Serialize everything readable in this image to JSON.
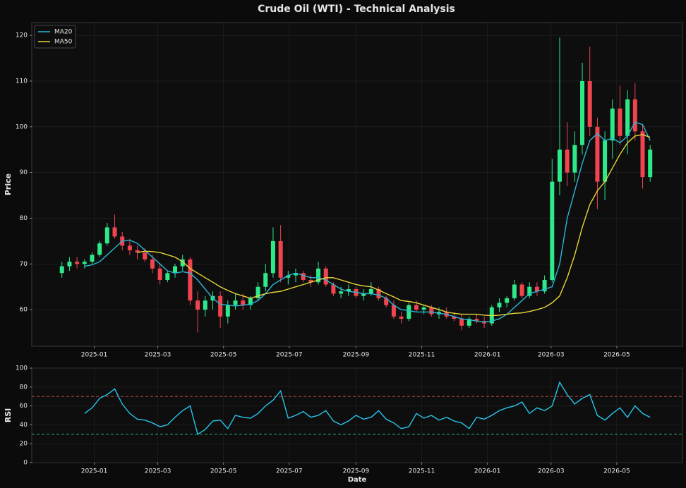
{
  "chart_data": [
    {
      "type": "candlestick",
      "title": "Crude Oil (WTI) - Technical Analysis",
      "ylabel": "Price",
      "x": [
        "2024-12-02",
        "2024-12-09",
        "2024-12-16",
        "2024-12-23",
        "2024-12-30",
        "2025-01-06",
        "2025-01-13",
        "2025-01-20",
        "2025-01-27",
        "2025-02-03",
        "2025-02-10",
        "2025-02-17",
        "2025-02-24",
        "2025-03-03",
        "2025-03-10",
        "2025-03-17",
        "2025-03-24",
        "2025-03-31",
        "2025-04-07",
        "2025-04-14",
        "2025-04-21",
        "2025-04-28",
        "2025-05-05",
        "2025-05-12",
        "2025-05-19",
        "2025-05-26",
        "2025-06-02",
        "2025-06-09",
        "2025-06-16",
        "2025-06-23",
        "2025-06-30",
        "2025-07-07",
        "2025-07-14",
        "2025-07-21",
        "2025-07-28",
        "2025-08-04",
        "2025-08-11",
        "2025-08-18",
        "2025-08-25",
        "2025-09-01",
        "2025-09-08",
        "2025-09-15",
        "2025-09-22",
        "2025-09-29",
        "2025-10-06",
        "2025-10-13",
        "2025-10-20",
        "2025-10-27",
        "2025-11-03",
        "2025-11-10",
        "2025-11-17",
        "2025-11-24",
        "2025-12-01",
        "2025-12-08",
        "2025-12-15",
        "2025-12-22",
        "2025-12-29",
        "2026-01-05",
        "2026-01-12",
        "2026-01-19",
        "2026-01-26",
        "2026-02-02",
        "2026-02-09",
        "2026-02-16",
        "2026-02-23",
        "2026-03-02",
        "2026-03-09",
        "2026-03-16",
        "2026-03-23",
        "2026-03-30",
        "2026-04-06",
        "2026-04-13",
        "2026-04-20",
        "2026-04-27",
        "2026-05-04",
        "2026-05-11",
        "2026-05-18",
        "2026-05-25",
        "2026-06-01"
      ],
      "open": [
        68,
        69.5,
        70.5,
        70,
        70.5,
        72,
        74.5,
        78,
        76,
        74,
        73,
        72.5,
        71,
        69,
        66.5,
        68,
        69.5,
        71,
        62,
        60,
        62,
        63,
        58.5,
        61,
        62,
        61,
        62.5,
        65,
        68,
        75,
        67,
        67.5,
        68,
        66.5,
        66,
        69,
        65.5,
        63.5,
        64,
        64.5,
        63,
        63.5,
        64.5,
        62.5,
        61,
        58.5,
        58,
        61,
        60,
        60.5,
        59,
        59.5,
        58.5,
        58,
        56.5,
        58,
        57.5,
        57,
        60.5,
        61.5,
        62.5,
        65.5,
        63,
        65,
        64,
        66.5,
        88,
        95,
        90,
        96,
        110,
        100,
        88,
        97,
        104,
        98,
        106,
        99,
        89
      ],
      "high": [
        70.5,
        71.5,
        71.5,
        71,
        72.5,
        75,
        79,
        80.8,
        77,
        75.5,
        74,
        73.5,
        72,
        70,
        68.5,
        70,
        72,
        71.5,
        64,
        63,
        64,
        64,
        62,
        63.5,
        63.5,
        63,
        66,
        70,
        78,
        78.5,
        68.5,
        69,
        68.5,
        67.5,
        70.5,
        69.5,
        66,
        65,
        65.5,
        65,
        64.5,
        66,
        65,
        63,
        62,
        59.5,
        61.5,
        62,
        61,
        61,
        60.5,
        60.5,
        59.5,
        59,
        58.5,
        59,
        58.5,
        61,
        62.5,
        63,
        66.5,
        66,
        66,
        66,
        67.5,
        93,
        119.5,
        101,
        99,
        114,
        117.5,
        102,
        99,
        106,
        109,
        108,
        109.5,
        100.5,
        96
      ],
      "low": [
        67,
        68.5,
        69,
        69,
        70,
        71.5,
        74,
        75.5,
        73,
        72,
        71,
        70.5,
        68,
        65.5,
        66,
        67,
        68.5,
        61,
        55,
        58.5,
        60,
        56,
        57,
        60,
        60,
        60,
        62,
        64,
        67,
        66,
        65.5,
        66,
        66,
        65,
        65.5,
        65,
        63,
        62.5,
        63,
        62.5,
        62,
        63,
        62,
        60.5,
        58,
        57,
        57.5,
        59.5,
        59,
        58.5,
        58,
        58,
        57.5,
        55.5,
        56,
        57,
        56,
        56.5,
        59.5,
        60.5,
        62,
        62.5,
        62.5,
        63,
        63.5,
        66,
        85,
        87,
        88,
        94,
        98,
        82,
        84,
        93,
        96,
        94,
        97,
        86.5,
        88
      ],
      "close": [
        69.5,
        70.5,
        70,
        70.5,
        72,
        74.5,
        78,
        76,
        74,
        73,
        72.5,
        71,
        69,
        66.5,
        68,
        69.5,
        71,
        62,
        60,
        62,
        63,
        58.5,
        61,
        62,
        61,
        62.5,
        65,
        68,
        75,
        67,
        67.5,
        68,
        66.5,
        66,
        69,
        65.5,
        63.5,
        64,
        64.5,
        63,
        63.5,
        64.5,
        62.5,
        61,
        58.5,
        58,
        61,
        60,
        60.5,
        59,
        59.5,
        58.5,
        58,
        56.5,
        58,
        57.5,
        57,
        60.5,
        61.5,
        62.5,
        65.5,
        63,
        65,
        64,
        66.5,
        88,
        95,
        90,
        96,
        110,
        100,
        88,
        97,
        104,
        98,
        106,
        99,
        89,
        95
      ],
      "up_color": "#2ee88a",
      "down_color": "#f0454f",
      "series": [
        {
          "name": "MA20",
          "color": "#29b6d8",
          "values": [
            null,
            null,
            null,
            69.5,
            69.8,
            70.5,
            72,
            73.5,
            75,
            75.2,
            74.5,
            73,
            71.5,
            70,
            68.5,
            68,
            68.3,
            68,
            66.5,
            64.5,
            62.5,
            61.2,
            61,
            60.8,
            61,
            61.2,
            62,
            63.5,
            65.5,
            66.5,
            67.5,
            68,
            67.5,
            67,
            67,
            66.5,
            65.5,
            64.5,
            64,
            63.8,
            63.5,
            63.5,
            63.2,
            62.5,
            61,
            60,
            59.8,
            59.5,
            59.5,
            59.5,
            59.2,
            59,
            58.5,
            58,
            57.8,
            57.5,
            57.3,
            57.5,
            58,
            59,
            60.5,
            62,
            63.5,
            64,
            64.5,
            65,
            70,
            80,
            86,
            92,
            97,
            98.5,
            97,
            97.5,
            96.5,
            98,
            101,
            100.5,
            97
          ]
        },
        {
          "name": "MA50",
          "color": "#e6d63a",
          "values": [
            null,
            null,
            null,
            null,
            null,
            null,
            null,
            null,
            null,
            null,
            72.5,
            72.8,
            72.7,
            72.5,
            72,
            71.5,
            70.5,
            69,
            68,
            67,
            66,
            65,
            64.2,
            63.5,
            63,
            62.5,
            63,
            63.5,
            63.8,
            64,
            64.5,
            65,
            65.5,
            66,
            66.5,
            67,
            67,
            66.5,
            66,
            65.5,
            65.2,
            65,
            64.3,
            63.5,
            62.8,
            62,
            61.8,
            61.5,
            61,
            60.5,
            60,
            59.5,
            59.2,
            59,
            59,
            59,
            58.8,
            58.7,
            58.8,
            59,
            59.2,
            59.3,
            59.6,
            60,
            60.5,
            61.5,
            63,
            67,
            72,
            78,
            83,
            86,
            88,
            91,
            94,
            96.5,
            98,
            98.3,
            97.7
          ]
        }
      ],
      "xlim": [
        "2024-11-04",
        "2026-07-01"
      ],
      "xticks": [
        {
          "value": "2025-01-01",
          "label": "2025-01"
        },
        {
          "value": "2025-03-01",
          "label": "2025-03"
        },
        {
          "value": "2025-05-01",
          "label": "2025-05"
        },
        {
          "value": "2025-07-01",
          "label": "2025-07"
        },
        {
          "value": "2025-09-01",
          "label": "2025-09"
        },
        {
          "value": "2025-11-01",
          "label": "2025-11"
        },
        {
          "value": "2026-01-01",
          "label": "2026-01"
        },
        {
          "value": "2026-03-01",
          "label": "2026-03"
        },
        {
          "value": "2026-05-01",
          "label": "2026-05"
        }
      ],
      "ylim": [
        52,
        122.8
      ],
      "yticks": [
        60,
        70,
        80,
        90,
        100,
        110,
        120
      ],
      "grid": true,
      "legend": "upper left"
    },
    {
      "type": "line",
      "ylabel": "RSI",
      "xlabel": "Date",
      "x": [
        "2024-12-02",
        "2024-12-09",
        "2024-12-16",
        "2024-12-23",
        "2024-12-30",
        "2025-01-06",
        "2025-01-13",
        "2025-01-20",
        "2025-01-27",
        "2025-02-03",
        "2025-02-10",
        "2025-02-17",
        "2025-02-24",
        "2025-03-03",
        "2025-03-10",
        "2025-03-17",
        "2025-03-24",
        "2025-03-31",
        "2025-04-07",
        "2025-04-14",
        "2025-04-21",
        "2025-04-28",
        "2025-05-05",
        "2025-05-12",
        "2025-05-19",
        "2025-05-26",
        "2025-06-02",
        "2025-06-09",
        "2025-06-16",
        "2025-06-23",
        "2025-06-30",
        "2025-07-07",
        "2025-07-14",
        "2025-07-21",
        "2025-07-28",
        "2025-08-04",
        "2025-08-11",
        "2025-08-18",
        "2025-08-25",
        "2025-09-01",
        "2025-09-08",
        "2025-09-15",
        "2025-09-22",
        "2025-09-29",
        "2025-10-06",
        "2025-10-13",
        "2025-10-20",
        "2025-10-27",
        "2025-11-03",
        "2025-11-10",
        "2025-11-17",
        "2025-11-24",
        "2025-12-01",
        "2025-12-08",
        "2025-12-15",
        "2025-12-22",
        "2025-12-29",
        "2026-01-05",
        "2026-01-12",
        "2026-01-19",
        "2026-01-26",
        "2026-02-02",
        "2026-02-09",
        "2026-02-16",
        "2026-02-23",
        "2026-03-02",
        "2026-03-09",
        "2026-03-16",
        "2026-03-23",
        "2026-03-30",
        "2026-04-06",
        "2026-04-13",
        "2026-04-20",
        "2026-04-27",
        "2026-05-04",
        "2026-05-11",
        "2026-05-18",
        "2026-05-25",
        "2026-06-01"
      ],
      "values": [
        null,
        null,
        null,
        52,
        58,
        68,
        72,
        78,
        62,
        52,
        46,
        45,
        42,
        38,
        40,
        48,
        55,
        60,
        30,
        35,
        44,
        45,
        36,
        50,
        48,
        47,
        52,
        60,
        66,
        76,
        47,
        50,
        54,
        48,
        50,
        55,
        44,
        40,
        44,
        50,
        46,
        48,
        55,
        46,
        42,
        36,
        38,
        52,
        47,
        50,
        45,
        48,
        44,
        42,
        36,
        48,
        46,
        50,
        55,
        58,
        60,
        64,
        52,
        58,
        55,
        60,
        85,
        72,
        62,
        68,
        72,
        50,
        45,
        52,
        58,
        48,
        60,
        52,
        48
      ],
      "color": "#27c6ea",
      "levels": [
        {
          "value": 70,
          "color": "#e04848"
        },
        {
          "value": 30,
          "color": "#2ecf8a"
        }
      ],
      "xlim": [
        "2024-11-04",
        "2026-07-01"
      ],
      "xticks": [
        {
          "value": "2025-01-01",
          "label": "2025-01"
        },
        {
          "value": "2025-03-01",
          "label": "2025-03"
        },
        {
          "value": "2025-05-01",
          "label": "2025-05"
        },
        {
          "value": "2025-07-01",
          "label": "2025-07"
        },
        {
          "value": "2025-09-01",
          "label": "2025-09"
        },
        {
          "value": "2025-11-01",
          "label": "2025-11"
        },
        {
          "value": "2026-01-01",
          "label": "2026-01"
        },
        {
          "value": "2026-03-01",
          "label": "2026-03"
        },
        {
          "value": "2026-05-01",
          "label": "2026-05"
        }
      ],
      "ylim": [
        0,
        100
      ],
      "yticks": [
        0,
        20,
        40,
        60,
        80,
        100
      ],
      "grid": true
    }
  ]
}
